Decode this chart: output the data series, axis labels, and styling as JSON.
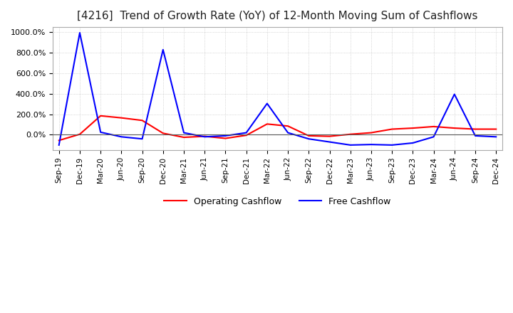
{
  "title": "[4216]  Trend of Growth Rate (YoY) of 12-Month Moving Sum of Cashflows",
  "title_fontsize": 11,
  "background_color": "#ffffff",
  "grid_color": "#bbbbbb",
  "ylim": [
    -150,
    1050
  ],
  "yticks": [
    0,
    200,
    400,
    600,
    800,
    1000
  ],
  "ytick_labels": [
    "0.0%",
    "200.0%",
    "400.0%",
    "600.0%",
    "800.0%",
    "1000.0%"
  ],
  "x_labels": [
    "Sep-19",
    "Dec-19",
    "Mar-20",
    "Jun-20",
    "Sep-20",
    "Dec-20",
    "Mar-21",
    "Jun-21",
    "Sep-21",
    "Dec-21",
    "Mar-22",
    "Jun-22",
    "Sep-22",
    "Dec-22",
    "Mar-23",
    "Jun-23",
    "Sep-23",
    "Dec-23",
    "Mar-24",
    "Jun-24",
    "Sep-24",
    "Dec-24"
  ],
  "operating_cashflow": [
    -55,
    5,
    185,
    165,
    140,
    15,
    -25,
    -15,
    -35,
    -5,
    105,
    85,
    -10,
    -15,
    5,
    20,
    55,
    65,
    80,
    65,
    55,
    55
  ],
  "free_cashflow": [
    -100,
    995,
    25,
    -20,
    -40,
    830,
    20,
    -20,
    -10,
    20,
    305,
    20,
    -40,
    -70,
    -100,
    -95,
    -100,
    -80,
    -20,
    395,
    -10,
    -20
  ],
  "op_color": "#ff0000",
  "free_color": "#0000ff",
  "legend_labels": [
    "Operating Cashflow",
    "Free Cashflow"
  ],
  "line_width": 1.5
}
